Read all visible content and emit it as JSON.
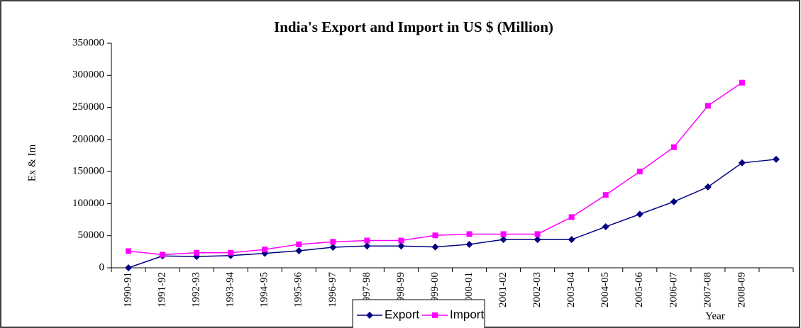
{
  "chart_data": {
    "type": "line",
    "title": "India's Export and Import in US $ (Million)",
    "x_label": "Year",
    "y_label": "Ex & Im",
    "categories": [
      "1990-91",
      "1991-92",
      "1992-93",
      "1993-94",
      "1994-95",
      "1995-96",
      "1996-97",
      "1997-98",
      "1998-99",
      "1999-00",
      "2000-01",
      "2001-02",
      "2002-03",
      "2003-04",
      "2004-05",
      "2005-06",
      "2006-07",
      "2007-08",
      "2008-09",
      null
    ],
    "series": [
      {
        "name": "Export",
        "color": "#000080",
        "marker": "diamond",
        "values": [
          0,
          18500,
          17500,
          19000,
          22500,
          26500,
          32000,
          34000,
          34000,
          32500,
          36500,
          44000,
          44000,
          44000,
          64000,
          83500,
          103000,
          126000,
          163500,
          169000
        ]
      },
      {
        "name": "Import",
        "color": "#ff00ff",
        "marker": "square",
        "values": [
          26000,
          20500,
          23500,
          23500,
          28500,
          36500,
          40500,
          42500,
          42500,
          50500,
          52500,
          52500,
          52500,
          79000,
          113500,
          150000,
          188000,
          252500,
          288500,
          null
        ]
      }
    ],
    "ylim": [
      0,
      350000
    ],
    "yticks": [
      0,
      50000,
      100000,
      150000,
      200000,
      250000,
      300000,
      350000
    ],
    "grid": false,
    "legend": "bottom"
  }
}
